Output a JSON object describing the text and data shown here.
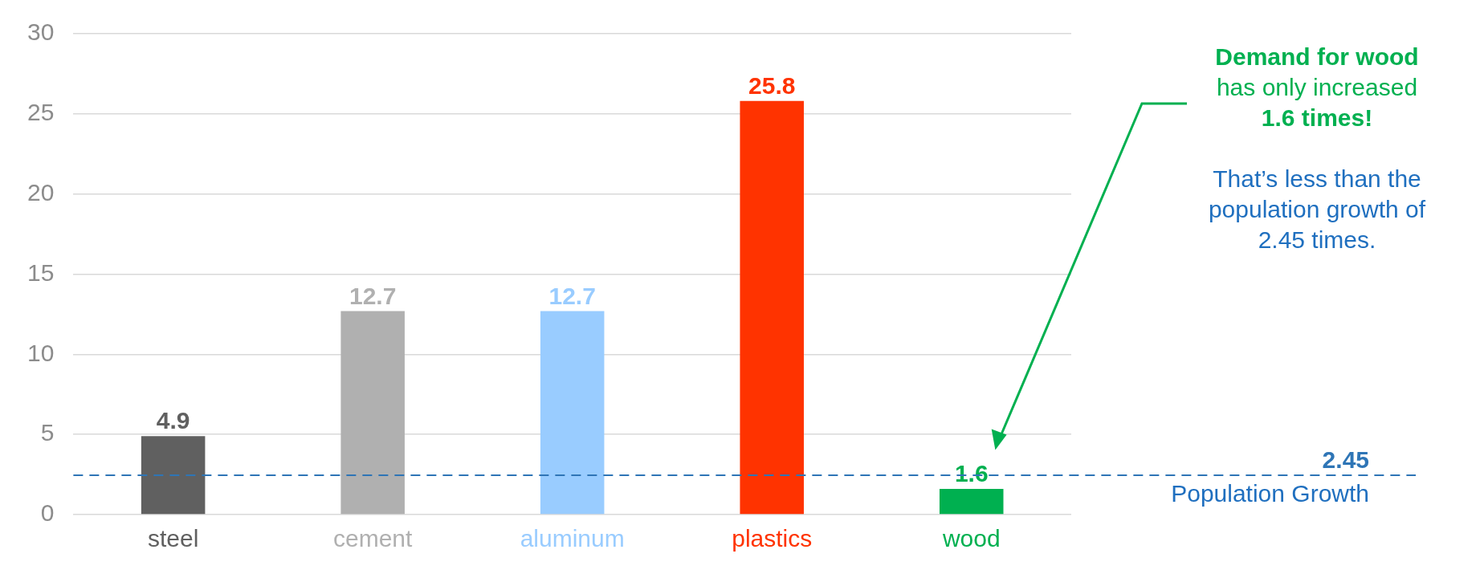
{
  "chart_data": {
    "type": "bar",
    "categories": [
      "steel",
      "cement",
      "aluminum",
      "plastics",
      "wood"
    ],
    "values": [
      4.9,
      12.7,
      12.7,
      25.8,
      1.6
    ],
    "colors": [
      "#606060",
      "#b0b0b0",
      "#99ccff",
      "#ff3300",
      "#00b050"
    ],
    "ylim": [
      0,
      30
    ],
    "yticks": [
      0,
      5,
      10,
      15,
      20,
      25,
      30
    ],
    "grid": "y",
    "data_labels": true,
    "ref_lines": [
      {
        "axis": "y",
        "value": 2.45,
        "label": "Population Growth",
        "color": "#2e75b6",
        "line_style": "dashed"
      }
    ],
    "annotations": [
      "Demand for wood",
      "has only increased",
      "1.6 times!",
      "That’s less than the",
      "population growth of",
      "2.45 times.",
      {
        "text": "2.45",
        "y": 2.45
      }
    ]
  }
}
